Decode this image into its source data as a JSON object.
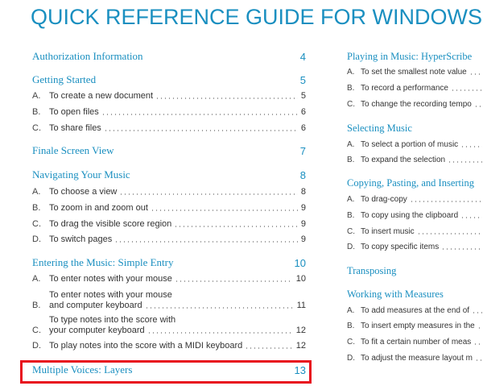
{
  "title": "QUICK REFERENCE GUIDE FOR WINDOWS",
  "colors": {
    "heading": "#1a8fc0",
    "highlight": "#e8101e"
  },
  "left_column": [
    {
      "type": "section",
      "label": "Authorization Information",
      "page": "4"
    },
    {
      "type": "section",
      "label": "Getting Started",
      "page": "5"
    },
    {
      "type": "item",
      "letter": "A.",
      "label": "To create a new document",
      "page": "5"
    },
    {
      "type": "item",
      "letter": "B.",
      "label": "To open files",
      "page": "6"
    },
    {
      "type": "item",
      "letter": "C.",
      "label": "To share files",
      "page": "6"
    },
    {
      "type": "section",
      "label": "Finale Screen View",
      "page": "7"
    },
    {
      "type": "section",
      "label": "Navigating Your Music",
      "page": "8"
    },
    {
      "type": "item",
      "letter": "A.",
      "label": "To choose a view",
      "page": "8"
    },
    {
      "type": "item",
      "letter": "B.",
      "label": "To zoom in and zoom out",
      "page": "9"
    },
    {
      "type": "item",
      "letter": "C.",
      "label": "To drag the visible score region",
      "page": "9"
    },
    {
      "type": "item",
      "letter": "D.",
      "label": "To switch pages",
      "page": "9"
    },
    {
      "type": "section",
      "label": "Entering the Music: Simple Entry",
      "page": "10"
    },
    {
      "type": "item",
      "letter": "A.",
      "label": "To enter notes with your mouse",
      "page": "10"
    },
    {
      "type": "item",
      "letter": "B.",
      "label": "To enter notes with your mouse",
      "label2": "and computer keyboard",
      "page": "11"
    },
    {
      "type": "item",
      "letter": "C.",
      "label": "To type notes into the score with",
      "label2": "your computer keyboard",
      "page": "12"
    },
    {
      "type": "item",
      "letter": "D.",
      "label": "To play notes into the score with a MIDI keyboard",
      "page": "12"
    },
    {
      "type": "section",
      "label": "Multiple Voices: Layers",
      "page": "13",
      "highlighted": true
    }
  ],
  "right_column": [
    {
      "type": "section",
      "label": "Playing in Music: HyperScribe"
    },
    {
      "type": "item",
      "letter": "A.",
      "label": "To set the smallest note value"
    },
    {
      "type": "item",
      "letter": "B.",
      "label": "To record a performance"
    },
    {
      "type": "item",
      "letter": "C.",
      "label": "To change the recording tempo"
    },
    {
      "type": "section",
      "label": "Selecting Music"
    },
    {
      "type": "item",
      "letter": "A.",
      "label": "To select a portion of music"
    },
    {
      "type": "item",
      "letter": "B.",
      "label": "To expand the selection"
    },
    {
      "type": "section",
      "label": "Copying, Pasting, and Inserting"
    },
    {
      "type": "item",
      "letter": "A.",
      "label": "To drag-copy"
    },
    {
      "type": "item",
      "letter": "B.",
      "label": "To copy using the clipboard"
    },
    {
      "type": "item",
      "letter": "C.",
      "label": "To insert music"
    },
    {
      "type": "item",
      "letter": "D.",
      "label": "To copy specific items"
    },
    {
      "type": "section",
      "label": "Transposing"
    },
    {
      "type": "section",
      "label": "Working with Measures"
    },
    {
      "type": "item",
      "letter": "A.",
      "label": "To add measures at the end of"
    },
    {
      "type": "item",
      "letter": "B.",
      "label": "To insert empty measures in the"
    },
    {
      "type": "item",
      "letter": "C.",
      "label": "To fit a certain number of meas"
    },
    {
      "type": "item",
      "letter": "D.",
      "label": "To adjust the measure layout m"
    }
  ]
}
